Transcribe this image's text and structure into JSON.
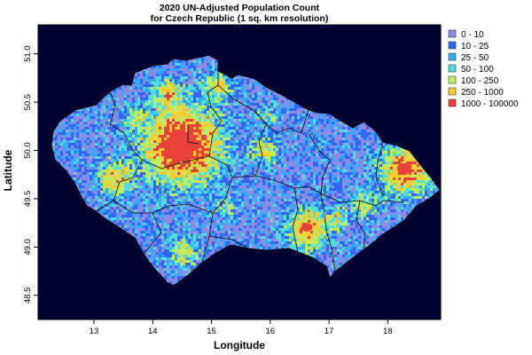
{
  "chart_data": {
    "type": "heatmap",
    "title": "2020 UN-Adjusted Population Count",
    "subtitle": "for Czech Republic (1 sq. km resolution)",
    "xlabel": "Longitude",
    "ylabel": "Latitude",
    "xlim": [
      12.05,
      18.9
    ],
    "ylim": [
      48.25,
      51.3
    ],
    "x_ticks": [
      "13",
      "14",
      "15",
      "16",
      "17",
      "18"
    ],
    "y_ticks": [
      "48.5",
      "49.0",
      "49.5",
      "50.0",
      "50.5",
      "51.0"
    ],
    "legend_position": "top-right",
    "grid": false,
    "colorbar_classes": [
      {
        "label": "0 - 10",
        "color": "#8c8ce6"
      },
      {
        "label": "10 - 25",
        "color": "#3366ff"
      },
      {
        "label": "25 - 50",
        "color": "#33aaff"
      },
      {
        "label": "50 - 100",
        "color": "#55dddd"
      },
      {
        "label": "100 - 250",
        "color": "#bbee66"
      },
      {
        "label": "250 - 1000",
        "color": "#ffcc33"
      },
      {
        "label": "1000 - 100000",
        "color": "#e8423a"
      }
    ]
  }
}
